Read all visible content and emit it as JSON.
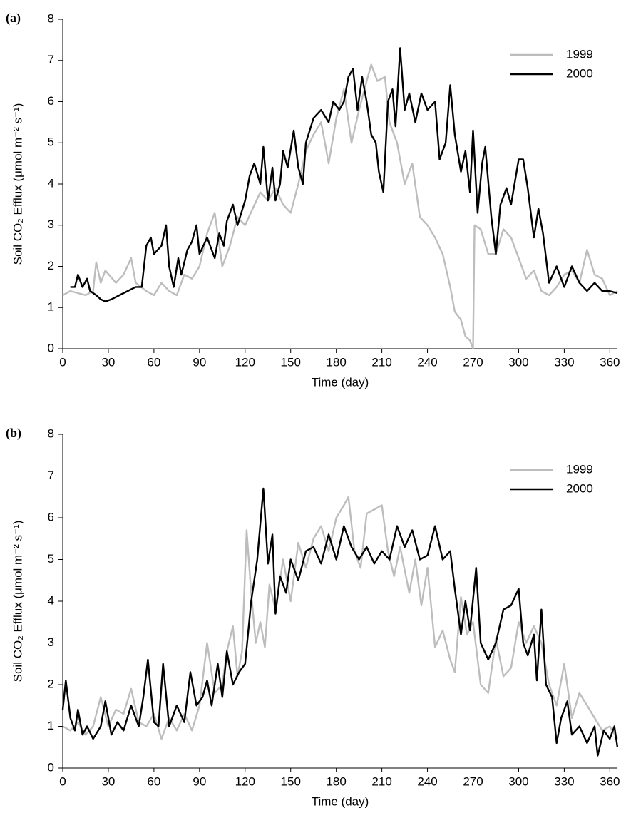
{
  "chart_data": [
    {
      "type": "line",
      "panel_label": "(a)",
      "xlabel": "Time (day)",
      "ylabel": "Soil CO₂ Efflux (μmol m⁻² s⁻¹)",
      "xlim": [
        0,
        365
      ],
      "ylim": [
        0,
        8
      ],
      "xticks": [
        0,
        30,
        60,
        90,
        120,
        150,
        180,
        210,
        240,
        270,
        300,
        330,
        360
      ],
      "yticks": [
        0,
        1,
        2,
        3,
        4,
        5,
        6,
        7,
        8
      ],
      "legend": "upper right",
      "series": [
        {
          "name": "1999",
          "color": "#bdbdbd",
          "x": [
            0,
            5,
            10,
            15,
            20,
            22,
            25,
            28,
            35,
            40,
            45,
            48,
            55,
            60,
            65,
            70,
            75,
            80,
            85,
            90,
            95,
            100,
            105,
            110,
            115,
            120,
            125,
            130,
            135,
            140,
            145,
            150,
            155,
            160,
            165,
            170,
            175,
            180,
            185,
            190,
            195,
            200,
            203,
            207,
            212,
            215,
            220,
            225,
            230,
            235,
            240,
            245,
            250,
            255,
            258,
            262,
            265,
            268,
            270,
            271,
            275,
            280,
            285,
            290,
            295,
            300,
            305,
            310,
            315,
            320,
            325,
            330,
            335,
            340,
            345,
            350,
            355,
            360,
            365
          ],
          "values": [
            1.3,
            1.4,
            1.35,
            1.3,
            1.4,
            2.1,
            1.6,
            1.9,
            1.6,
            1.8,
            2.2,
            1.6,
            1.4,
            1.3,
            1.6,
            1.4,
            1.3,
            1.8,
            1.7,
            2.0,
            2.8,
            3.3,
            2.0,
            2.5,
            3.2,
            3.0,
            3.4,
            3.8,
            3.6,
            3.9,
            3.5,
            3.3,
            4.0,
            4.8,
            5.2,
            5.5,
            4.5,
            5.6,
            6.3,
            5.0,
            5.8,
            6.5,
            6.9,
            6.5,
            6.6,
            5.5,
            5.0,
            4.0,
            4.5,
            3.2,
            3.0,
            2.7,
            2.3,
            1.5,
            0.9,
            0.7,
            0.3,
            0.2,
            0,
            3.0,
            2.9,
            2.3,
            2.3,
            2.9,
            2.7,
            2.2,
            1.7,
            1.9,
            1.4,
            1.3,
            1.5,
            1.8,
            1.9,
            1.6,
            2.4,
            1.8,
            1.7,
            1.3,
            1.4
          ]
        },
        {
          "name": "2000",
          "color": "#000000",
          "x": [
            5,
            8,
            10,
            13,
            16,
            18,
            22,
            25,
            28,
            32,
            40,
            48,
            52,
            55,
            58,
            60,
            65,
            68,
            70,
            73,
            76,
            78,
            82,
            85,
            88,
            90,
            95,
            100,
            103,
            106,
            108,
            112,
            115,
            120,
            123,
            126,
            130,
            132,
            135,
            138,
            140,
            143,
            145,
            148,
            152,
            155,
            158,
            160,
            165,
            170,
            175,
            178,
            182,
            185,
            188,
            191,
            194,
            197,
            200,
            203,
            206,
            208,
            211,
            214,
            217,
            219,
            222,
            225,
            228,
            232,
            236,
            240,
            245,
            248,
            252,
            255,
            258,
            262,
            265,
            268,
            270,
            273,
            276,
            278,
            282,
            285,
            288,
            292,
            295,
            300,
            303,
            306,
            310,
            313,
            316,
            320,
            325,
            330,
            335,
            340,
            345,
            350,
            355,
            360,
            365
          ],
          "values": [
            1.5,
            1.5,
            1.8,
            1.5,
            1.7,
            1.4,
            1.3,
            1.2,
            1.15,
            1.2,
            1.35,
            1.5,
            1.5,
            2.5,
            2.7,
            2.3,
            2.5,
            3.0,
            2.0,
            1.5,
            2.2,
            1.8,
            2.4,
            2.6,
            3.0,
            2.3,
            2.7,
            2.2,
            2.8,
            2.5,
            3.1,
            3.5,
            3.0,
            3.6,
            4.2,
            4.5,
            4.0,
            4.9,
            3.6,
            4.4,
            3.6,
            4.0,
            4.8,
            4.4,
            5.3,
            4.4,
            4.0,
            5.0,
            5.6,
            5.8,
            5.5,
            6.0,
            5.8,
            6.0,
            6.6,
            6.8,
            5.8,
            6.6,
            6.0,
            5.2,
            5.0,
            4.3,
            3.8,
            6.0,
            6.3,
            5.4,
            7.3,
            5.8,
            6.2,
            5.5,
            6.2,
            5.8,
            6.0,
            4.6,
            5.0,
            6.4,
            5.2,
            4.3,
            4.8,
            3.8,
            5.3,
            3.3,
            4.5,
            4.9,
            3.2,
            2.3,
            3.5,
            3.9,
            3.5,
            4.6,
            4.6,
            3.9,
            2.7,
            3.4,
            2.8,
            1.6,
            2.0,
            1.5,
            2.0,
            1.6,
            1.4,
            1.6,
            1.4,
            1.4,
            1.35
          ]
        }
      ]
    },
    {
      "type": "line",
      "panel_label": "(b)",
      "xlabel": "Time (day)",
      "ylabel": "Soil CO₂ Efflux (μmol m⁻² s⁻¹)",
      "xlim": [
        0,
        365
      ],
      "ylim": [
        0,
        8
      ],
      "xticks": [
        0,
        30,
        60,
        90,
        120,
        150,
        180,
        210,
        240,
        270,
        300,
        330,
        360
      ],
      "yticks": [
        0,
        1,
        2,
        3,
        4,
        5,
        6,
        7,
        8
      ],
      "legend": "upper right",
      "series": [
        {
          "name": "1999",
          "color": "#bdbdbd",
          "x": [
            0,
            5,
            10,
            15,
            20,
            25,
            30,
            35,
            40,
            45,
            50,
            55,
            60,
            65,
            70,
            75,
            80,
            85,
            90,
            95,
            100,
            105,
            108,
            112,
            115,
            118,
            121,
            124,
            127,
            130,
            133,
            136,
            140,
            145,
            150,
            155,
            160,
            165,
            170,
            175,
            180,
            185,
            188,
            192,
            196,
            200,
            205,
            210,
            214,
            218,
            222,
            228,
            232,
            236,
            240,
            245,
            250,
            255,
            258,
            262,
            266,
            270,
            275,
            280,
            285,
            290,
            295,
            300,
            305,
            310,
            315,
            320,
            325,
            330,
            335,
            340,
            345,
            350,
            355,
            360,
            365
          ],
          "values": [
            1.0,
            0.9,
            1.1,
            0.8,
            1.0,
            1.7,
            1.0,
            1.4,
            1.3,
            1.9,
            1.1,
            1.0,
            1.3,
            0.7,
            1.2,
            0.9,
            1.3,
            0.9,
            1.5,
            3.0,
            1.8,
            2.0,
            2.8,
            3.4,
            2.2,
            2.8,
            5.7,
            4.2,
            3.0,
            3.5,
            2.9,
            4.4,
            3.8,
            5.0,
            4.0,
            5.4,
            4.8,
            5.5,
            5.8,
            5.2,
            6.0,
            6.3,
            6.5,
            5.2,
            4.8,
            6.1,
            6.2,
            6.3,
            5.2,
            4.6,
            5.3,
            4.2,
            5.0,
            3.9,
            4.8,
            2.9,
            3.3,
            2.6,
            2.3,
            4.1,
            3.2,
            3.5,
            2.0,
            1.8,
            3.1,
            2.2,
            2.4,
            3.5,
            3.0,
            3.4,
            3.0,
            2.0,
            1.5,
            2.5,
            1.2,
            1.8,
            1.5,
            1.2,
            0.9,
            1.0,
            0.7
          ]
        },
        {
          "name": "2000",
          "color": "#000000",
          "x": [
            0,
            2,
            5,
            8,
            10,
            13,
            16,
            20,
            25,
            28,
            32,
            36,
            40,
            45,
            50,
            53,
            56,
            60,
            63,
            66,
            70,
            75,
            80,
            84,
            88,
            92,
            95,
            98,
            102,
            105,
            108,
            112,
            116,
            120,
            124,
            128,
            132,
            135,
            138,
            140,
            143,
            147,
            150,
            155,
            160,
            165,
            170,
            175,
            180,
            185,
            190,
            195,
            200,
            205,
            210,
            215,
            220,
            225,
            230,
            235,
            240,
            245,
            250,
            255,
            258,
            262,
            265,
            268,
            272,
            275,
            280,
            285,
            290,
            295,
            300,
            303,
            306,
            310,
            312,
            315,
            318,
            322,
            325,
            328,
            332,
            335,
            340,
            345,
            350,
            352,
            356,
            360,
            363,
            365
          ],
          "values": [
            1.4,
            2.1,
            1.2,
            0.9,
            1.4,
            0.8,
            1.0,
            0.7,
            1.0,
            1.6,
            0.8,
            1.1,
            0.9,
            1.5,
            1.0,
            1.7,
            2.6,
            1.1,
            1.0,
            2.5,
            1.0,
            1.5,
            1.1,
            2.3,
            1.5,
            1.7,
            2.1,
            1.5,
            2.5,
            1.7,
            2.8,
            2.0,
            2.3,
            2.5,
            4.0,
            5.0,
            6.7,
            4.9,
            5.6,
            3.7,
            4.6,
            4.2,
            5.0,
            4.5,
            5.2,
            5.3,
            4.9,
            5.6,
            5.0,
            5.8,
            5.3,
            5.0,
            5.3,
            4.9,
            5.2,
            5.0,
            5.8,
            5.3,
            5.7,
            5.0,
            5.1,
            5.8,
            5.0,
            5.2,
            4.3,
            3.2,
            4.0,
            3.3,
            4.8,
            3.0,
            2.6,
            3.0,
            3.8,
            3.9,
            4.3,
            3.0,
            2.7,
            3.2,
            2.1,
            3.8,
            2.0,
            1.7,
            0.6,
            1.2,
            1.6,
            0.8,
            1.0,
            0.6,
            1.0,
            0.3,
            0.9,
            0.7,
            1.0,
            0.5
          ]
        }
      ]
    }
  ]
}
